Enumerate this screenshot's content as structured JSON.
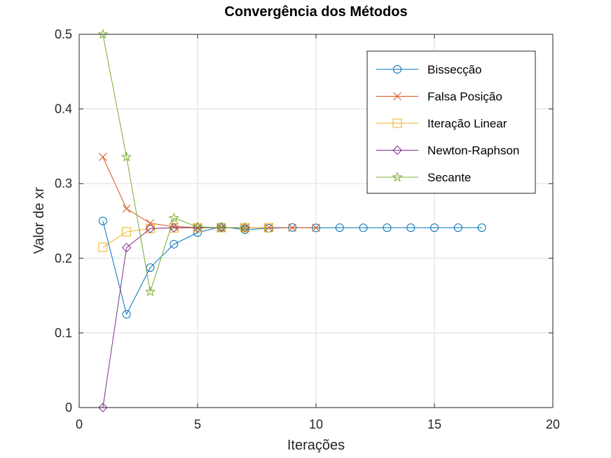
{
  "chart_data": {
    "type": "line",
    "title": "Convergência dos Métodos",
    "xlabel": "Iterações",
    "ylabel": "Valor de xr",
    "xlim": [
      0,
      20
    ],
    "ylim": [
      0,
      0.5
    ],
    "xticks": [
      0,
      5,
      10,
      15,
      20
    ],
    "yticks": [
      0,
      0.1,
      0.2,
      0.3,
      0.4,
      0.5
    ],
    "xtick_labels": [
      "0",
      "5",
      "10",
      "15",
      "20"
    ],
    "ytick_labels": [
      "0",
      "0.1",
      "0.2",
      "0.3",
      "0.4",
      "0.5"
    ],
    "grid": true,
    "legend_position": "top-right",
    "series": [
      {
        "name": "Bissecção",
        "color": "#0072BD",
        "marker": "circle",
        "x": [
          1,
          2,
          3,
          4,
          5,
          6,
          7,
          8,
          9,
          10,
          11,
          12,
          13,
          14,
          15,
          16,
          17
        ],
        "y": [
          0.25,
          0.125,
          0.1875,
          0.2188,
          0.2344,
          0.2422,
          0.2383,
          0.2402,
          0.2412,
          0.2407,
          0.241,
          0.2409,
          0.241,
          0.241,
          0.241,
          0.241,
          0.241
        ]
      },
      {
        "name": "Falsa Posição",
        "color": "#D95319",
        "marker": "x",
        "x": [
          1,
          2,
          3,
          4,
          5,
          6,
          7,
          8,
          9,
          10
        ],
        "y": [
          0.3357,
          0.2664,
          0.247,
          0.2424,
          0.2413,
          0.241,
          0.241,
          0.241,
          0.241,
          0.241
        ]
      },
      {
        "name": "Iteração Linear",
        "color": "#EDB120",
        "marker": "square",
        "x": [
          1,
          2,
          3,
          4,
          5,
          6,
          7,
          8
        ],
        "y": [
          0.2148,
          0.2354,
          0.2398,
          0.2407,
          0.2409,
          0.241,
          0.241,
          0.241
        ]
      },
      {
        "name": "Newton-Raphson",
        "color": "#7E2F8E",
        "marker": "diamond",
        "x": [
          1,
          2,
          3,
          4,
          5,
          6,
          7
        ],
        "y": [
          0.0,
          0.2143,
          0.2397,
          0.241,
          0.241,
          0.241,
          0.241
        ]
      },
      {
        "name": "Secante",
        "color": "#77AC30",
        "marker": "star",
        "x": [
          1,
          2,
          3,
          4,
          5,
          6,
          7
        ],
        "y": [
          0.5,
          0.3357,
          0.1552,
          0.2538,
          0.2421,
          0.241,
          0.241
        ]
      }
    ]
  }
}
